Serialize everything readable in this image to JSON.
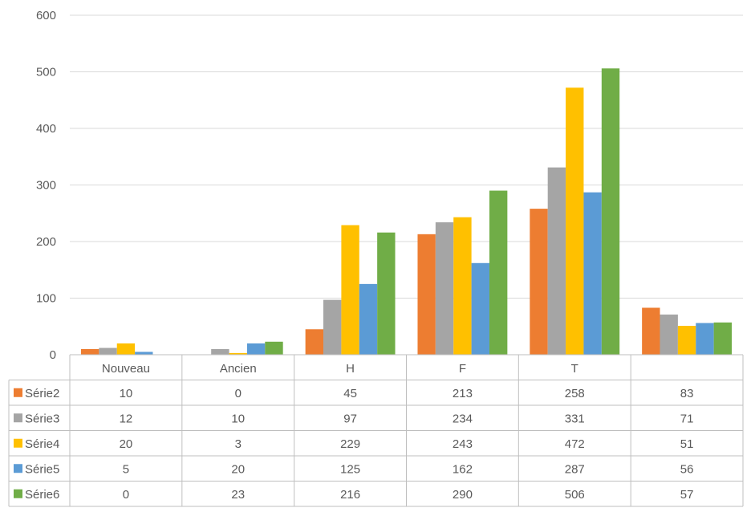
{
  "chart_data": {
    "type": "bar",
    "title": "",
    "xlabel": "",
    "ylabel": "",
    "ylim": [
      0,
      600
    ],
    "yticks": [
      0,
      100,
      200,
      300,
      400,
      500,
      600
    ],
    "grid": true,
    "legend": "data-table-left",
    "categories": [
      "Nouveau",
      "Ancien",
      "H",
      "F",
      "T",
      ""
    ],
    "series": [
      {
        "name": "Série2",
        "color": "#ED7D31",
        "values": [
          10,
          0,
          45,
          213,
          258,
          83
        ]
      },
      {
        "name": "Série3",
        "color": "#A5A5A5",
        "values": [
          12,
          10,
          97,
          234,
          331,
          71
        ]
      },
      {
        "name": "Série4",
        "color": "#FFC000",
        "values": [
          20,
          3,
          229,
          243,
          472,
          51
        ]
      },
      {
        "name": "Série5",
        "color": "#5B9BD5",
        "values": [
          5,
          20,
          125,
          162,
          287,
          56
        ]
      },
      {
        "name": "Série6",
        "color": "#70AD47",
        "values": [
          0,
          23,
          216,
          290,
          506,
          57
        ]
      }
    ]
  }
}
